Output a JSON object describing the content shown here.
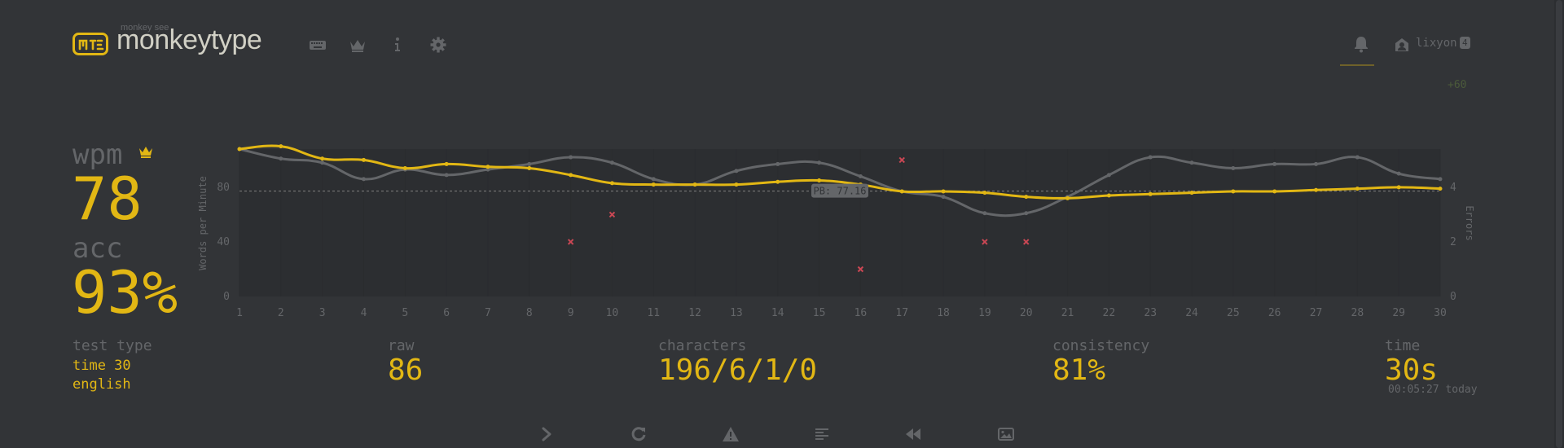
{
  "header": {
    "logo_small": "monkey see",
    "logo_text": "monkeytype",
    "username": "lixyon",
    "user_level": "4",
    "xp_gain": "+60",
    "icons": [
      "keyboard-icon",
      "crown-icon",
      "info-icon",
      "gear-icon",
      "bell-icon",
      "account-icon"
    ]
  },
  "stats": {
    "wpm_label": "wpm",
    "wpm_value": "78",
    "acc_label": "acc",
    "acc_value": "93%",
    "test_type_label": "test type",
    "test_type_line1": "time 30",
    "test_type_line2": "english",
    "raw_label": "raw",
    "raw_value": "86",
    "characters_label": "characters",
    "characters_value": "196/6/1/0",
    "consistency_label": "consistency",
    "consistency_value": "81%",
    "time_label": "time",
    "time_value": "30s",
    "time_sub": "00:05:27 today"
  },
  "actions": [
    "next-test",
    "restart-test",
    "report",
    "words-history",
    "replay",
    "screenshot"
  ],
  "colors": {
    "bg": "#323437",
    "main": "#e2b714",
    "sub": "#646669",
    "text": "#d1d0c5",
    "error": "#ca4754",
    "raw_line": "#646669"
  },
  "chart_data": {
    "type": "line",
    "x": [
      1,
      2,
      3,
      4,
      5,
      6,
      7,
      8,
      9,
      10,
      11,
      12,
      13,
      14,
      15,
      16,
      17,
      18,
      19,
      20,
      21,
      22,
      23,
      24,
      25,
      26,
      27,
      28,
      29,
      30
    ],
    "xlim": [
      1,
      30
    ],
    "ylim": [
      0,
      108
    ],
    "errors_ylim": [
      0,
      5.4
    ],
    "ylabel": "Words per Minute",
    "y2label": "Errors",
    "yticks": [
      0,
      40,
      80
    ],
    "y2ticks": [
      0,
      2,
      4
    ],
    "pb_value": 77.16,
    "pb_label": "PB: 77.16",
    "series": [
      {
        "values": [
          108,
          110,
          101,
          100,
          94,
          97,
          95,
          94,
          89,
          83,
          82,
          82,
          82,
          84,
          85,
          82,
          77,
          77,
          76,
          73,
          72,
          74,
          75,
          76,
          77,
          77,
          78,
          79,
          80,
          79
        ]
      },
      {
        "values": [
          108,
          101,
          98,
          86,
          93,
          89,
          93,
          97,
          102,
          98,
          86,
          82,
          92,
          97,
          98,
          88,
          77,
          73,
          61,
          61,
          73,
          89,
          102,
          98,
          94,
          97,
          97,
          102,
          90,
          86
        ]
      }
    ],
    "errors": [
      {
        "x": 9,
        "y": 2
      },
      {
        "x": 10,
        "y": 3
      },
      {
        "x": 16,
        "y": 1
      },
      {
        "x": 17,
        "y": 5
      },
      {
        "x": 19,
        "y": 2
      },
      {
        "x": 20,
        "y": 2
      }
    ]
  }
}
